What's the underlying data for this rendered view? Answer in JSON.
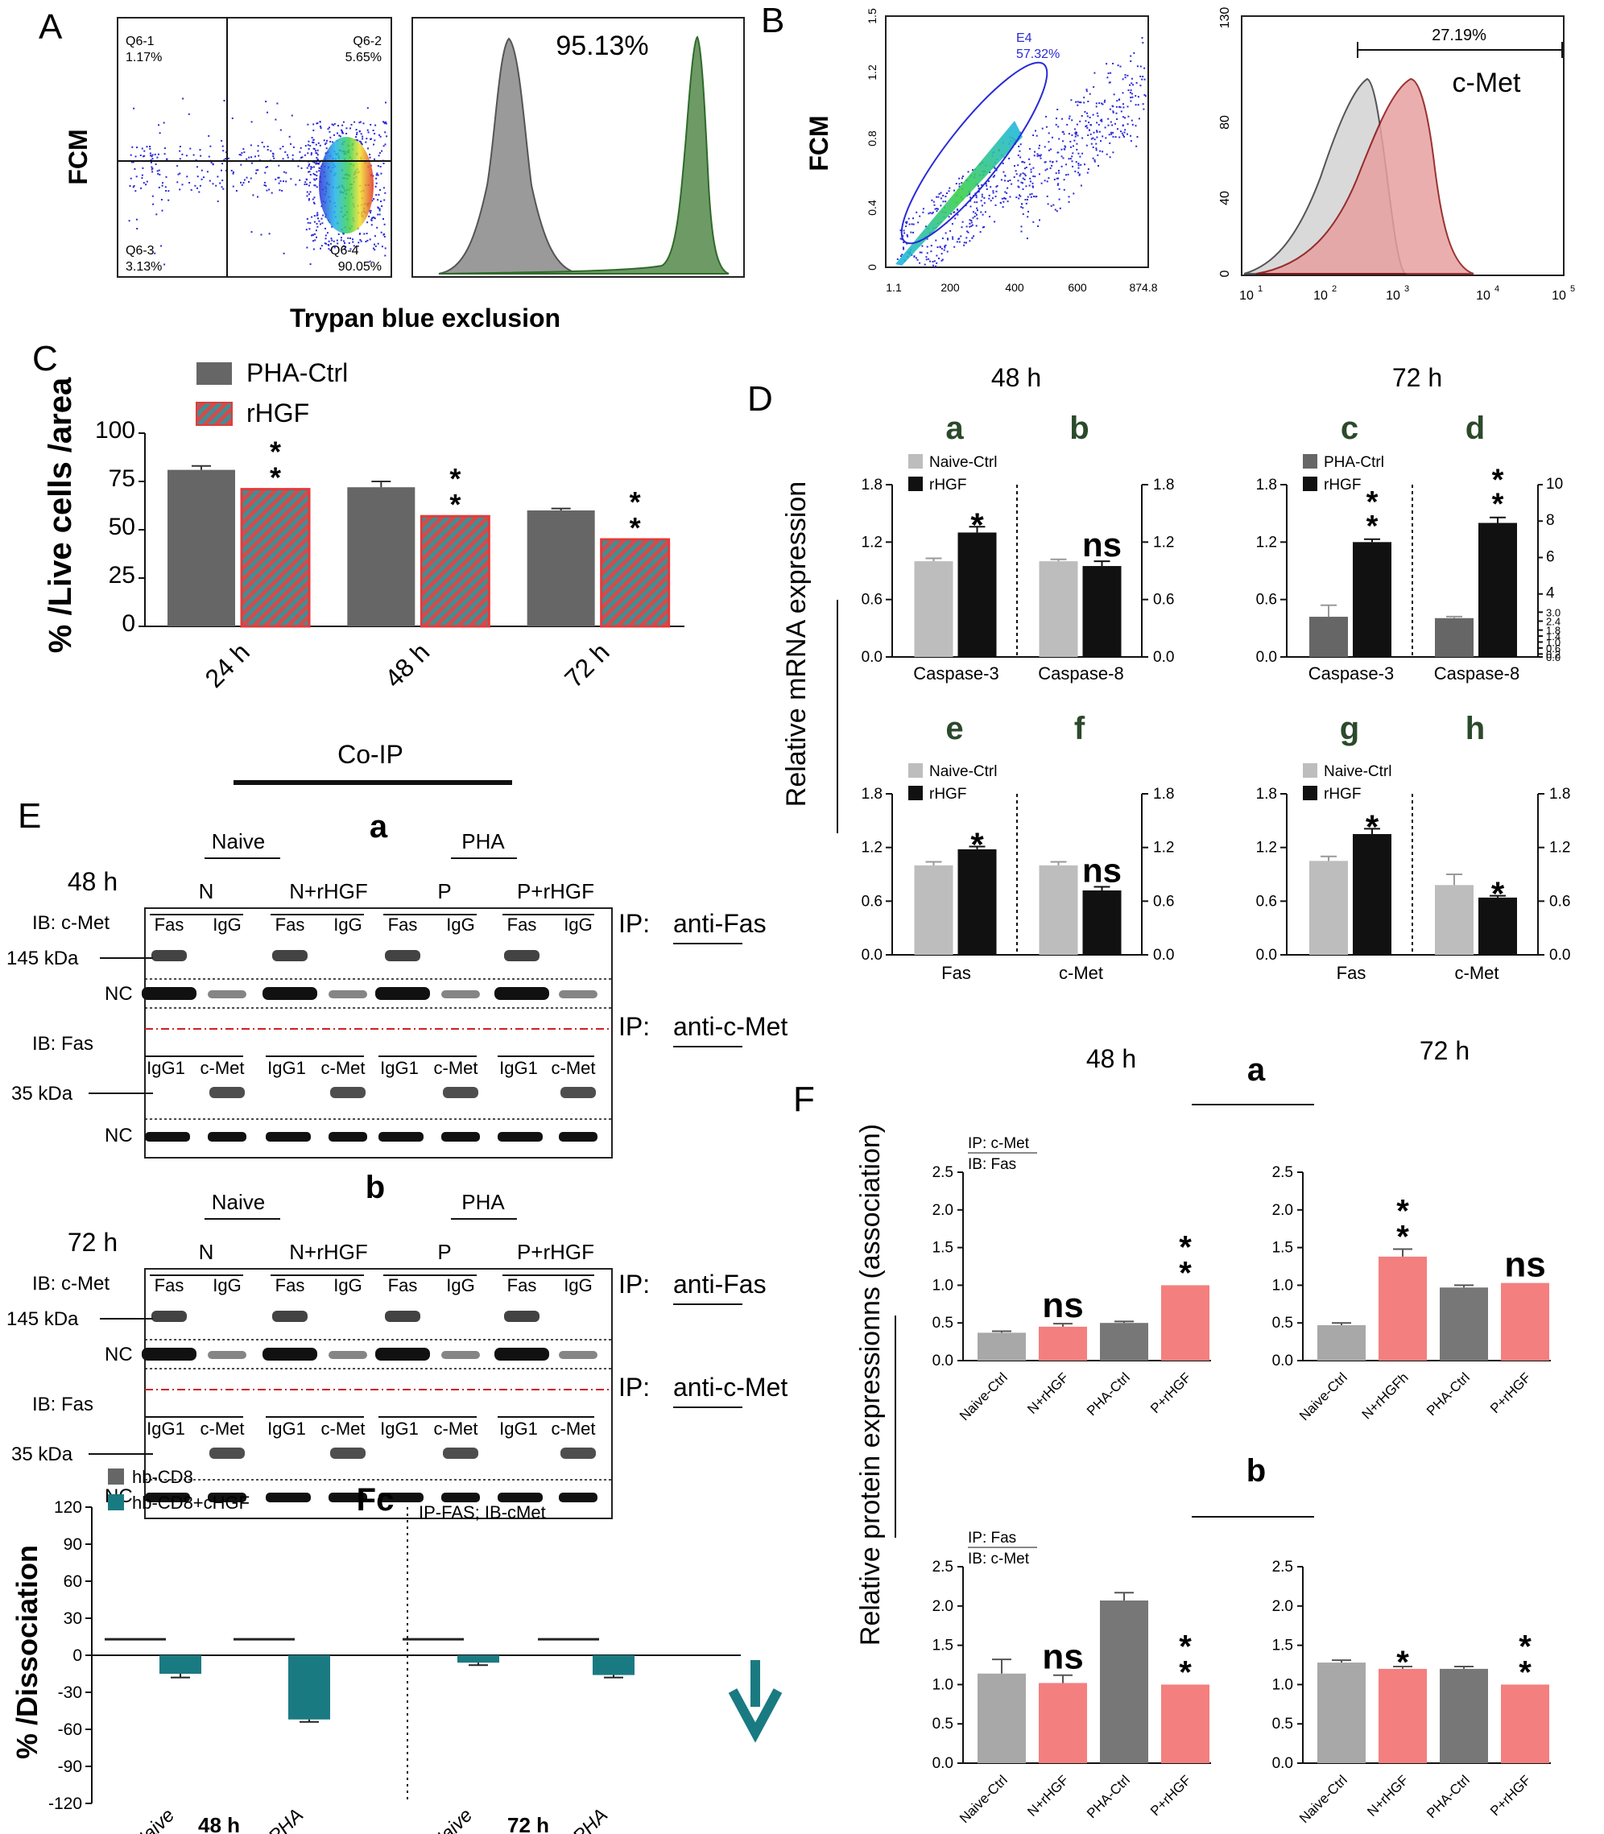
{
  "panel_letters": {
    "A": "A",
    "B": "B",
    "C": "C",
    "D": "D",
    "E": "E",
    "F": "F"
  },
  "colors": {
    "gray": "#666666",
    "red_hatch": "#e33b3b",
    "teal": "#1a7a82",
    "light": "#bdbdbd",
    "black": "#111111",
    "pink": "#f47f7f",
    "blue": "#2a2ad8"
  },
  "panelA": {
    "ylabel": "FCM",
    "xlabel": "Trypan blue exclusion",
    "quadrants": {
      "q1": "Q6-1",
      "v1": "1.17%",
      "q2": "Q6-2",
      "v2": "5.65%",
      "q3": "Q6-3",
      "v3": "3.13%",
      "q4": "Q6-4",
      "v4": "90.05%"
    },
    "histogram_percent": "95.13%"
  },
  "panelB": {
    "ylabel": "FCM",
    "gate": {
      "name": "E4",
      "value": "57.32%"
    },
    "scatter_y_ticks": [
      "0",
      "0.4",
      "0.8",
      "1.2",
      "1.5"
    ],
    "scatter_x_ticks": [
      "1.1",
      "200",
      "400",
      "600",
      "874.8"
    ],
    "hist_percent": "27.19%",
    "hist_label": "c-Met",
    "hist_y_ticks": [
      "0",
      "40",
      "80",
      "130"
    ],
    "hist_x_ticks": [
      "10",
      "10",
      "10",
      "10",
      "10"
    ],
    "hist_x_exp": [
      "1",
      "2",
      "3",
      "4",
      "5"
    ]
  },
  "chart_data": [
    {
      "id": "C",
      "type": "bar",
      "title": "",
      "ylabel": "% /Live cells /area",
      "xlabel": "",
      "categories": [
        "24 h",
        "48 h",
        "72 h"
      ],
      "series": [
        {
          "name": "PHA-Ctrl",
          "values": [
            81,
            72,
            60
          ],
          "errors": [
            2,
            3,
            1
          ]
        },
        {
          "name": "rHGF",
          "values": [
            71,
            57,
            45
          ],
          "errors": [
            0,
            0,
            0
          ]
        }
      ],
      "ylim": [
        0,
        100
      ],
      "yticks": [
        "0",
        "25",
        "50",
        "75",
        "100"
      ],
      "annotations": [
        "**",
        "**",
        "**"
      ]
    },
    {
      "id": "D",
      "type": "bar",
      "ylabel": "Relative mRNA expression",
      "time_labels": [
        "48 h",
        "72 h"
      ],
      "subpanels": [
        {
          "letter": "a",
          "legend": [
            "Naive-Ctrl",
            "rHGF"
          ],
          "category": "Caspase-3",
          "values": [
            1.0,
            1.3
          ],
          "errors": [
            0.03,
            0.06
          ],
          "annotation": "*",
          "ylim": [
            0,
            1.8
          ],
          "yticks": [
            "0.0",
            "0.6",
            "1.2",
            "1.8"
          ]
        },
        {
          "letter": "b",
          "category": "Caspase-8",
          "values": [
            1.0,
            0.95
          ],
          "errors": [
            0.02,
            0.05
          ],
          "annotation": "ns",
          "ylim": [
            0,
            1.8
          ],
          "yticks": [
            "0.0",
            "0.6",
            "1.2",
            "1.8"
          ]
        },
        {
          "letter": "c",
          "legend": [
            "PHA-Ctrl",
            "rHGF"
          ],
          "category": "Caspase-3",
          "values": [
            0.42,
            1.2
          ],
          "errors": [
            0.12,
            0.03
          ],
          "annotation": "**",
          "ylim": [
            0,
            1.8
          ],
          "yticks": [
            "0.0",
            "0.6",
            "1.2",
            "1.8"
          ]
        },
        {
          "letter": "d",
          "category": "Caspase-8",
          "values": [
            2.6,
            7.9
          ],
          "errors": [
            0.1,
            0.3
          ],
          "annotation": "**",
          "ylim": [
            0,
            10
          ],
          "yticks": [
            "0.0",
            "0.2",
            "0.6",
            "1.0",
            "1.4",
            "1.8",
            "2.4",
            "3.0",
            "4",
            "6",
            "8",
            "10"
          ]
        },
        {
          "letter": "e",
          "legend": [
            "Naive-Ctrl",
            "rHGF"
          ],
          "category": "Fas",
          "values": [
            1.0,
            1.18
          ],
          "errors": [
            0.04,
            0.03
          ],
          "annotation": "*",
          "ylim": [
            0,
            1.8
          ],
          "yticks": [
            "0.0",
            "0.6",
            "1.2",
            "1.8"
          ]
        },
        {
          "letter": "f",
          "category": "c-Met",
          "values": [
            1.0,
            0.72
          ],
          "errors": [
            0.04,
            0.04
          ],
          "annotation": "ns",
          "ylim": [
            0,
            1.8
          ],
          "yticks": [
            "0.0",
            "0.6",
            "1.2",
            "1.8"
          ]
        },
        {
          "letter": "g",
          "legend": [
            "Naive-Ctrl",
            "rHGF"
          ],
          "category": "Fas",
          "values": [
            1.05,
            1.35
          ],
          "errors": [
            0.05,
            0.06
          ],
          "annotation": "*",
          "ylim": [
            0,
            1.8
          ],
          "yticks": [
            "0.0",
            "0.6",
            "1.2",
            "1.8"
          ]
        },
        {
          "letter": "h",
          "category": "c-Met",
          "values": [
            0.78,
            0.64
          ],
          "errors": [
            0.12,
            0.02
          ],
          "annotation": "*",
          "ylim": [
            0,
            1.8
          ],
          "yticks": [
            "0.0",
            "0.6",
            "1.2",
            "1.8"
          ]
        }
      ]
    },
    {
      "id": "F",
      "type": "bar",
      "ylabel": "Relative protein expressionns (association)",
      "time_labels": [
        "48 h",
        "72 h"
      ],
      "sublabels": [
        "a",
        "b"
      ],
      "subpanels": [
        {
          "ip": "IP: c-Met",
          "ib": "IB: Fas",
          "categories": [
            "Naive-Ctrl",
            "N+rHGF",
            "PHA-Ctrl",
            "P+rHGF"
          ],
          "values": [
            0.37,
            0.45,
            0.5,
            1.0
          ],
          "errors": [
            0.02,
            0.04,
            0.02,
            0
          ],
          "annotations": [
            "",
            "ns",
            "",
            "**"
          ],
          "ylim": [
            0,
            2.5
          ],
          "yticks": [
            "0.0",
            "0.5",
            "1.0",
            "1.5",
            "2.0",
            "2.5"
          ]
        },
        {
          "categories": [
            "Naive-Ctrl",
            "N+rHGFh",
            "PHA-Ctrl",
            "P+rHGF"
          ],
          "values": [
            0.47,
            1.38,
            0.97,
            1.03
          ],
          "errors": [
            0.03,
            0.1,
            0.03,
            0
          ],
          "annotations": [
            "",
            "**",
            "",
            "ns"
          ],
          "ylim": [
            0,
            2.5
          ],
          "yticks": [
            "0.0",
            "0.5",
            "1.0",
            "1.5",
            "2.0",
            "2.5"
          ]
        },
        {
          "ip": "IP: Fas",
          "ib": "IB: c-Met",
          "categories": [
            "Naive-Ctrl",
            "N+rHGF",
            "PHA-Ctrl",
            "P+rHGF"
          ],
          "values": [
            1.14,
            1.02,
            2.07,
            1.0
          ],
          "errors": [
            0.18,
            0.1,
            0.1,
            0
          ],
          "annotations": [
            "",
            "ns",
            "",
            "**"
          ],
          "ylim": [
            0,
            2.5
          ],
          "yticks": [
            "0.0",
            "0.5",
            "1.0",
            "1.5",
            "2.0",
            "2.5"
          ]
        },
        {
          "categories": [
            "Naive-Ctrl",
            "N+rHGF",
            "PHA-Ctrl",
            "P+rHGF"
          ],
          "values": [
            1.28,
            1.2,
            1.2,
            1.0
          ],
          "errors": [
            0.03,
            0.03,
            0.03,
            0
          ],
          "annotations": [
            "",
            "*",
            "",
            "**"
          ],
          "ylim": [
            0,
            2.5
          ],
          "yticks": [
            "0.0",
            "0.5",
            "1.0",
            "1.5",
            "2.0",
            "2.5"
          ]
        }
      ]
    },
    {
      "id": "Fc",
      "type": "bar",
      "title": "Fc",
      "ylabel": "% /Dissociation",
      "legend": [
        "hb-CD8",
        "hb-CD8+cHGF"
      ],
      "annotation": "IP-FAS; IB-cMet",
      "categories": [
        "Naive",
        "PHA",
        "Naive",
        "PHA"
      ],
      "group_labels": [
        "48 h",
        "72 h"
      ],
      "series": [
        {
          "name": "hb-CD8",
          "values": [
            13,
            13,
            13,
            13
          ]
        },
        {
          "name": "hb-CD8+cHGF",
          "values": [
            -15,
            -52,
            -6,
            -16
          ]
        }
      ],
      "errors": [
        3,
        2,
        2,
        2
      ],
      "ylim": [
        -120,
        120
      ],
      "yticks": [
        "-120",
        "-90",
        "-60",
        "-30",
        "0",
        "30",
        "60",
        "90",
        "120"
      ]
    }
  ],
  "panelE": {
    "coip": "Co-IP",
    "sub_a": "a",
    "sub_b": "b",
    "time_a": "48 h",
    "time_b": "72 h",
    "naive": "Naive",
    "pha": "PHA",
    "lanes": [
      "N",
      "N+rHGF",
      "P",
      "P+rHGF"
    ],
    "ib_cmet": "IB: c-Met",
    "ib_fas": "IB: Fas",
    "fas": "Fas",
    "igg": "IgG",
    "igg1": "IgG1",
    "cmet": "c-Met",
    "kda145": "145 kDa",
    "kda35": "35 kDa",
    "nc": "NC",
    "ip_label": "IP:",
    "ip_fas": "anti-Fas",
    "ip_cmet": "anti-c-Met"
  }
}
